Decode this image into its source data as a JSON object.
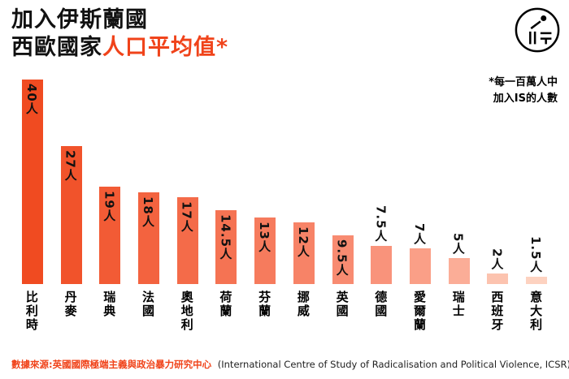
{
  "header": {
    "title_line1": "加入伊斯蘭國",
    "title_line2_black": "西歐國家",
    "title_line2_red": "人口平均值*",
    "accent_color": "#f0431a"
  },
  "logo": {
    "icon": "initium-circle-logo"
  },
  "note": {
    "line1": "*每一百萬人中",
    "line2": "加入IS的人數"
  },
  "source": {
    "zh": "數據來源:英國國際極端主義與政治暴力研究中心",
    "en": "(International Centre of Study of Radicalisation and Political Violence, ICSR)"
  },
  "chart_data": {
    "type": "bar",
    "title": "加入伊斯蘭國 西歐國家人口平均值（每一百萬人中加入IS的人數）",
    "unit": "人",
    "categories": [
      "比利時",
      "丹麥",
      "瑞典",
      "法國",
      "奧地利",
      "荷蘭",
      "芬蘭",
      "挪威",
      "英國",
      "德國",
      "愛爾蘭",
      "瑞士",
      "西班牙",
      "意大利"
    ],
    "values": [
      40,
      27,
      19,
      18,
      17,
      14.5,
      13,
      12,
      9.5,
      7.5,
      7,
      5,
      2,
      1.5
    ],
    "value_labels": [
      "40人",
      "27人",
      "19人",
      "18人",
      "17人",
      "14.5人",
      "13人",
      "12人",
      "9.5人",
      "7.5人",
      "7人",
      "5人",
      "2人",
      "1.5人"
    ],
    "bar_colors": [
      "#f04b21",
      "#f1532b",
      "#f25b35",
      "#f3633f",
      "#f46b49",
      "#f57353",
      "#f67b5d",
      "#f78367",
      "#f88b71",
      "#f9937b",
      "#fa9f87",
      "#fbad97",
      "#fcc3af",
      "#fdd2c0"
    ],
    "ylim": [
      0,
      42
    ],
    "grid": false,
    "axis_visible": false,
    "legend": "none"
  }
}
